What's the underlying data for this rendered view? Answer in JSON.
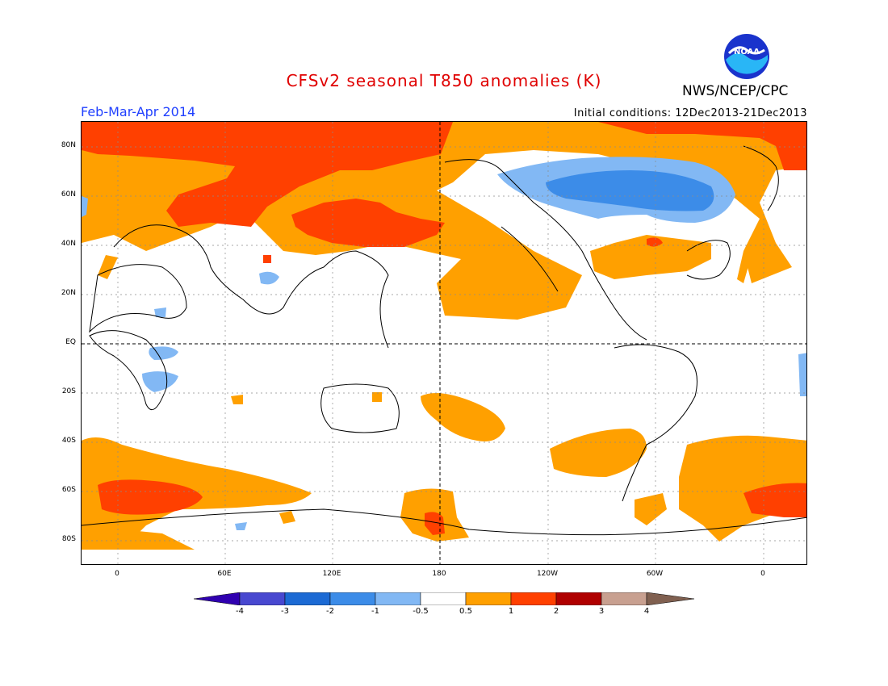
{
  "header": {
    "title": "CFSv2 seasonal T850 anomalies (K)",
    "agency": "NWS/NCEP/CPC",
    "period": "Feb-Mar-Apr 2014",
    "initial_conditions": "Initial conditions: 12Dec2013-21Dec2013",
    "logo_text": "NOAA"
  },
  "axes": {
    "lat_labels": [
      "80N",
      "60N",
      "40N",
      "20N",
      "EQ",
      "20S",
      "40S",
      "60S",
      "80S"
    ],
    "lon_labels": [
      "0",
      "60E",
      "120E",
      "180",
      "120W",
      "60W",
      "0"
    ]
  },
  "colorbar": {
    "labels": [
      "-4",
      "-3",
      "-2",
      "-1",
      "-0.5",
      "0.5",
      "1",
      "2",
      "3",
      "4"
    ],
    "colors": [
      "#3000b0",
      "#4848d0",
      "#1c6ad4",
      "#3c8ce8",
      "#82b8f4",
      "#ffffff",
      "#ffa000",
      "#ff4000",
      "#b00000",
      "#c8a090",
      "#806050"
    ]
  }
}
